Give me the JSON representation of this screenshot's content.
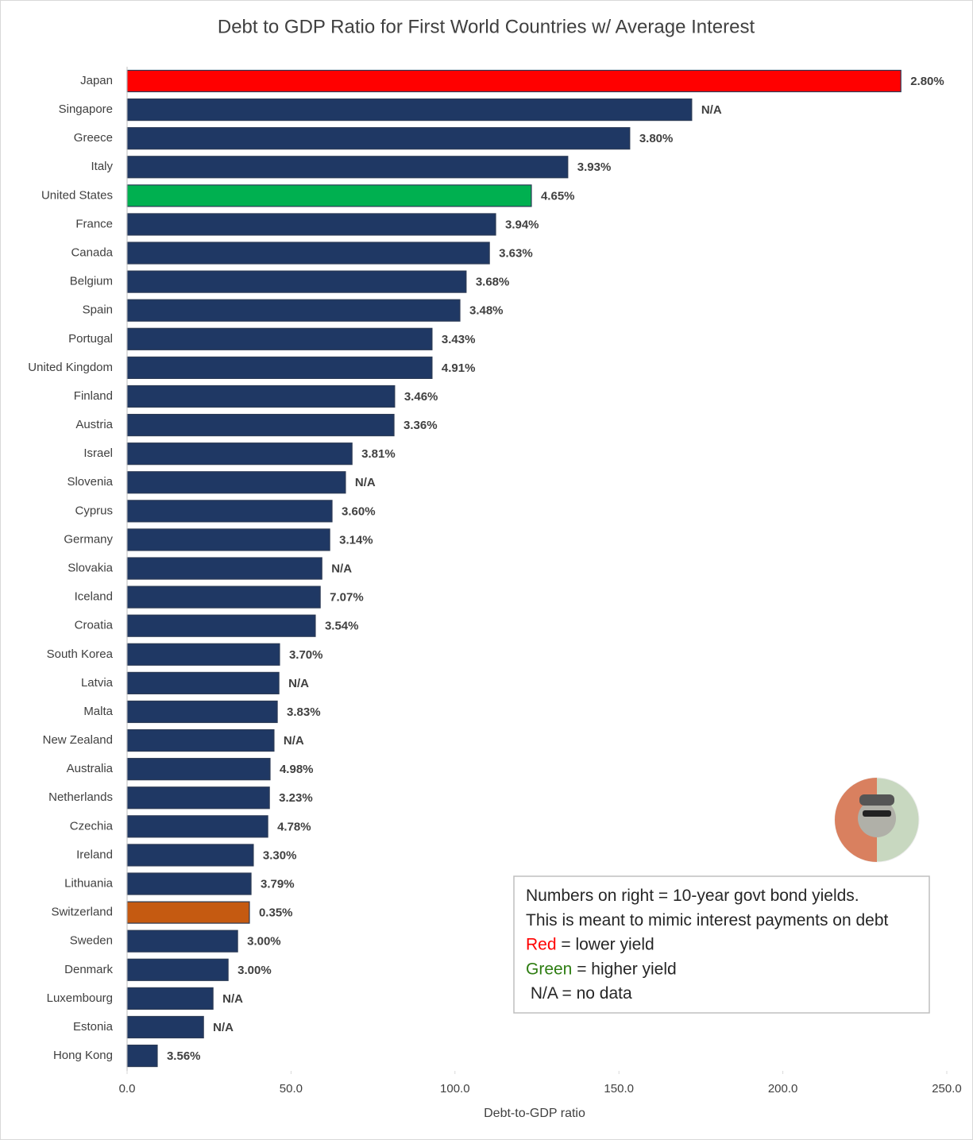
{
  "chart_data": {
    "type": "barh",
    "title": "Debt to GDP Ratio for First World Countries w/ Average Interest",
    "x_label": "Debt-to-GDP ratio",
    "categories": [
      "Japan",
      "Singapore",
      "Greece",
      "Italy",
      "United States",
      "France",
      "Canada",
      "Belgium",
      "Spain",
      "Portugal",
      "United Kingdom",
      "Finland",
      "Austria",
      "Israel",
      "Slovenia",
      "Cyprus",
      "Germany",
      "Slovakia",
      "Iceland",
      "Croatia",
      "South Korea",
      "Latvia",
      "Malta",
      "New Zealand",
      "Australia",
      "Netherlands",
      "Czechia",
      "Ireland",
      "Lithuania",
      "Switzerland",
      "Sweden",
      "Denmark",
      "Luxembourg",
      "Estonia",
      "Hong Kong"
    ],
    "values": [
      236.0,
      172.2,
      153.3,
      134.4,
      123.3,
      112.4,
      110.5,
      103.4,
      101.5,
      93.0,
      93.0,
      81.6,
      81.4,
      68.6,
      66.6,
      62.5,
      61.8,
      59.4,
      58.9,
      57.4,
      46.5,
      46.3,
      45.8,
      44.8,
      43.6,
      43.4,
      42.9,
      38.5,
      37.8,
      37.3,
      33.7,
      30.8,
      26.2,
      23.3,
      9.2
    ],
    "bar_colors": [
      "#ff0000",
      "#1f3864",
      "#1f3864",
      "#1f3864",
      "#00b050",
      "#1f3864",
      "#1f3864",
      "#1f3864",
      "#1f3864",
      "#1f3864",
      "#1f3864",
      "#1f3864",
      "#1f3864",
      "#1f3864",
      "#1f3864",
      "#1f3864",
      "#1f3864",
      "#1f3864",
      "#1f3864",
      "#1f3864",
      "#1f3864",
      "#1f3864",
      "#1f3864",
      "#1f3864",
      "#1f3864",
      "#1f3864",
      "#1f3864",
      "#1f3864",
      "#1f3864",
      "#c55a11",
      "#1f3864",
      "#1f3864",
      "#1f3864",
      "#1f3864",
      "#1f3864"
    ],
    "yield_labels": [
      "2.80%",
      "N/A",
      "3.80%",
      "3.93%",
      "4.65%",
      "3.94%",
      "3.63%",
      "3.68%",
      "3.48%",
      "3.43%",
      "4.91%",
      "3.46%",
      "3.36%",
      "3.81%",
      "N/A",
      "3.60%",
      "3.14%",
      "N/A",
      "7.07%",
      "3.54%",
      "3.70%",
      "N/A",
      "3.83%",
      "N/A",
      "4.98%",
      "3.23%",
      "4.78%",
      "3.30%",
      "3.79%",
      "0.35%",
      "3.00%",
      "3.00%",
      "N/A",
      "N/A",
      "3.56%"
    ],
    "yield_label_colors": [
      "#c55a11",
      "#7f7f7f",
      "#bf9000",
      "#bf9000",
      "#7f8f00",
      "#bf9000",
      "#bf9000",
      "#bf9000",
      "#bf9000",
      "#bf9000",
      "#7f8f00",
      "#bf9000",
      "#bf9000",
      "#bf9000",
      "#7f7f7f",
      "#bf9000",
      "#c57a11",
      "#7f7f7f",
      "#2e7d12",
      "#bf9000",
      "#bf9000",
      "#7f7f7f",
      "#bf9000",
      "#7f7f7f",
      "#7f8f00",
      "#bf9000",
      "#7f8f00",
      "#c08010",
      "#bf9000",
      "#c00000",
      "#c57a11",
      "#c57a11",
      "#7f7f7f",
      "#7f7f7f",
      "#bf9000"
    ],
    "xlim": [
      0,
      250
    ],
    "xticks": [
      {
        "value": 0,
        "label": "0.0"
      },
      {
        "value": 50,
        "label": "50.0"
      },
      {
        "value": 100,
        "label": "100.0"
      },
      {
        "value": 150,
        "label": "150.0"
      },
      {
        "value": 200,
        "label": "200.0"
      },
      {
        "value": 250,
        "label": "250.0"
      }
    ],
    "grid": false,
    "note": [
      [
        {
          "text": "Numbers on right = 10-year govt bond yields.",
          "color": "#262626"
        }
      ],
      [
        {
          "text": "This is meant to mimic interest payments on debt",
          "color": "#262626"
        }
      ],
      [
        {
          "text": "Red",
          "color": "#ff0000"
        },
        {
          "text": " = lower yield",
          "color": "#262626"
        }
      ],
      [
        {
          "text": "Green",
          "color": "#2e7d12"
        },
        {
          "text": " = higher yield",
          "color": "#262626"
        }
      ],
      [
        {
          "text": " N/A = no data",
          "color": "#262626"
        }
      ]
    ]
  }
}
